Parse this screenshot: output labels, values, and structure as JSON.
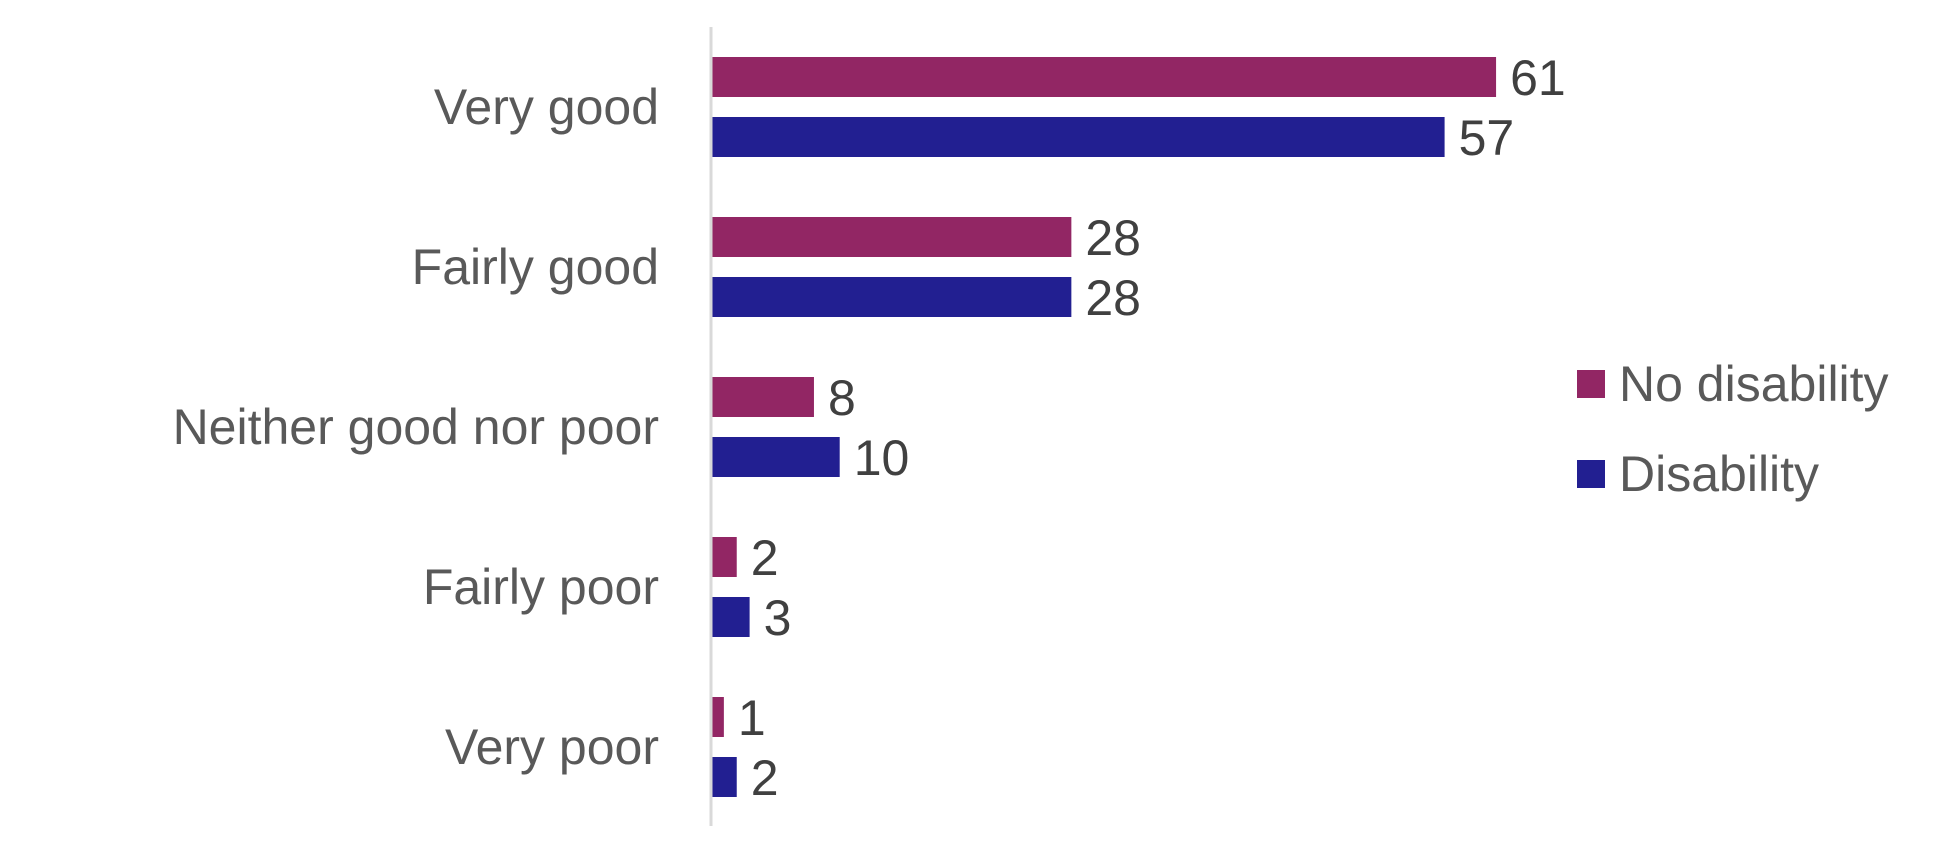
{
  "chart_data": {
    "type": "bar",
    "orientation": "horizontal",
    "categories": [
      "Very good",
      "Fairly good",
      "Neither good nor poor",
      "Fairly poor",
      "Very poor"
    ],
    "series": [
      {
        "name": "No disability",
        "values": [
          61,
          28,
          8,
          2,
          1
        ],
        "color": "#922664"
      },
      {
        "name": "Disability",
        "values": [
          57,
          28,
          10,
          3,
          2
        ],
        "color": "#221F91"
      }
    ],
    "data_labels": true,
    "xlim": [
      0,
      61
    ],
    "grid": false,
    "legend": "right",
    "axis_color": "#d9d9d9"
  }
}
